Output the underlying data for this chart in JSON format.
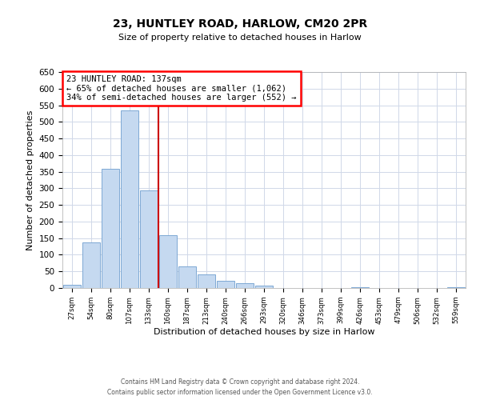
{
  "title": "23, HUNTLEY ROAD, HARLOW, CM20 2PR",
  "subtitle": "Size of property relative to detached houses in Harlow",
  "xlabel": "Distribution of detached houses by size in Harlow",
  "ylabel": "Number of detached properties",
  "bin_labels": [
    "27sqm",
    "54sqm",
    "80sqm",
    "107sqm",
    "133sqm",
    "160sqm",
    "187sqm",
    "213sqm",
    "240sqm",
    "266sqm",
    "293sqm",
    "320sqm",
    "346sqm",
    "373sqm",
    "399sqm",
    "426sqm",
    "453sqm",
    "479sqm",
    "506sqm",
    "532sqm",
    "559sqm"
  ],
  "bar_values": [
    10,
    137,
    358,
    535,
    293,
    158,
    65,
    40,
    22,
    15,
    8,
    0,
    0,
    0,
    0,
    3,
    0,
    0,
    0,
    0,
    3
  ],
  "bar_color": "#c5d9f0",
  "bar_edge_color": "#7da8d4",
  "marker_color": "#cc0000",
  "annotation_line1": "23 HUNTLEY ROAD: 137sqm",
  "annotation_line2": "← 65% of detached houses are smaller (1,062)",
  "annotation_line3": "34% of semi-detached houses are larger (552) →",
  "ylim": [
    0,
    650
  ],
  "yticks": [
    0,
    50,
    100,
    150,
    200,
    250,
    300,
    350,
    400,
    450,
    500,
    550,
    600,
    650
  ],
  "footer1": "Contains HM Land Registry data © Crown copyright and database right 2024.",
  "footer2": "Contains public sector information licensed under the Open Government Licence v3.0.",
  "bg_color": "#ffffff",
  "grid_color": "#d0d8e8"
}
